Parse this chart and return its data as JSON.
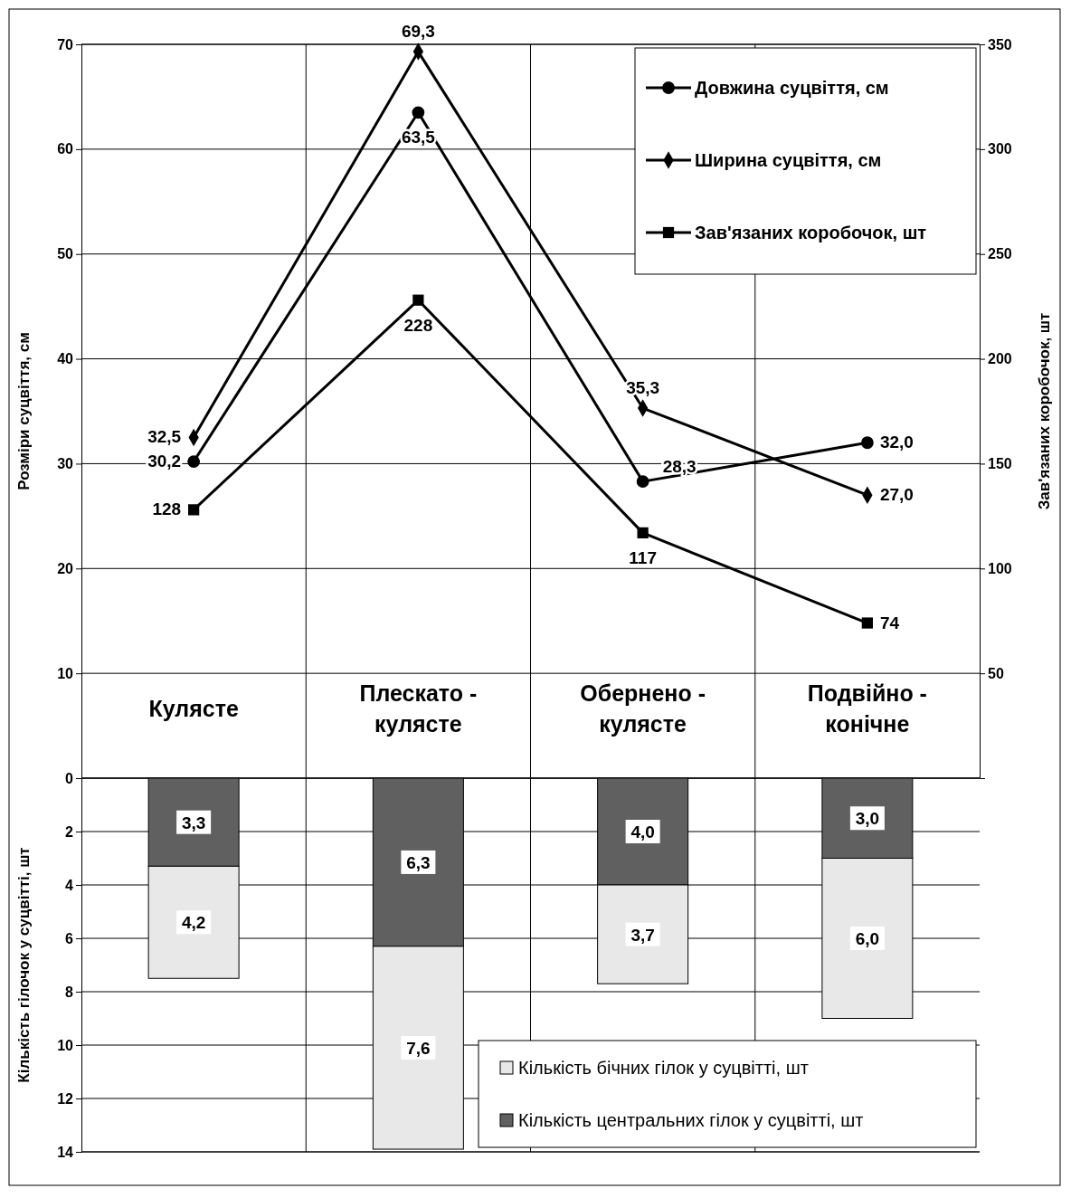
{
  "chart_data": [
    {
      "type": "line",
      "categories": [
        "Кулясте",
        "Плескато - кулясте",
        "Обернено - кулясте",
        "Подвійно - конічне"
      ],
      "ylabel": "Розміри суцвіття, см",
      "y2label": "Зав'язаних коробочок, шт",
      "ylim": [
        0,
        70
      ],
      "yticks": [
        10,
        20,
        30,
        40,
        50,
        60,
        70
      ],
      "y2lim": [
        0,
        350
      ],
      "y2ticks": [
        50,
        100,
        150,
        200,
        250,
        300,
        350
      ],
      "grid": true,
      "legend": "top right",
      "series": [
        {
          "name": "Довжина суцвіття, см",
          "color": "#000000",
          "marker": "circle",
          "values": [
            30.2,
            63.5,
            28.3,
            32.0
          ],
          "value_labels": [
            "30,2",
            "63,5",
            "28,3",
            "32,0"
          ]
        },
        {
          "name": "Ширина суцвіття, см",
          "color": "#000000",
          "marker": "diamond",
          "values": [
            32.5,
            69.3,
            35.3,
            27.0
          ],
          "value_labels": [
            "32,5",
            "69,3",
            "35,3",
            "27,0"
          ]
        },
        {
          "name": "Зав'язаних коробочок, шт",
          "color": "#000000",
          "marker": "square",
          "axis": "y2",
          "values": [
            128,
            228,
            117,
            74
          ],
          "value_labels": [
            "128",
            "228",
            "117",
            "74"
          ]
        }
      ]
    },
    {
      "type": "bar",
      "stacked": true,
      "categories": [
        null,
        null,
        null,
        null
      ],
      "ylabel": "Кількість гілочок у суцвітті, шт",
      "ylim": [
        14,
        0
      ],
      "yticks": [
        0,
        2,
        4,
        6,
        8,
        10,
        12,
        14
      ],
      "grid": true,
      "legend": "bottom right",
      "series": [
        {
          "name": "Кількість центральних гілок у суцвітті, шт",
          "color": "#606060",
          "values": [
            3.3,
            6.3,
            4.0,
            3.0
          ],
          "value_labels": [
            "3,3",
            "6,3",
            "4,0",
            "3,0"
          ]
        },
        {
          "name": "Кількість бічних гілок у суцвітті, шт",
          "color": "#e8e8e8",
          "values": [
            4.2,
            7.6,
            3.7,
            6.0
          ],
          "value_labels": [
            "4,2",
            "7,6",
            "3,7",
            "6,0"
          ]
        }
      ]
    }
  ]
}
